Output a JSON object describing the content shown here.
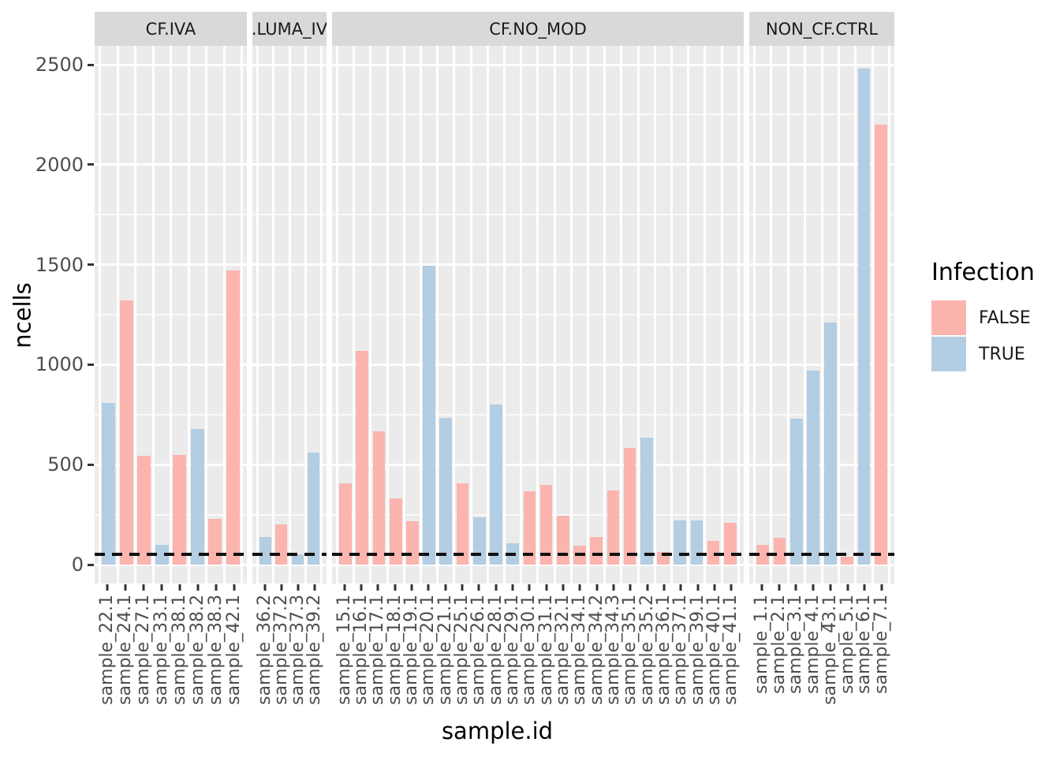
{
  "chart_data": {
    "type": "bar",
    "title": "",
    "xlabel": "sample.id",
    "ylabel": "ncells",
    "ylim": [
      0,
      2600
    ],
    "yticks": [
      "0",
      "500",
      "1000",
      "1500",
      "2000",
      "2500"
    ],
    "ytick_values": [
      0,
      500,
      1000,
      1500,
      2000,
      2500
    ],
    "minor_gridlines": [
      250,
      750,
      1250,
      1750,
      2250
    ],
    "grid": "on",
    "legend_position": "right",
    "hline": {
      "value": 50,
      "style": "dashed",
      "color": "#111111"
    },
    "legend": {
      "title": "Infection",
      "entries": [
        {
          "label": "FALSE",
          "color": "#FBB4AE"
        },
        {
          "label": "TRUE",
          "color": "#B3CDE3"
        }
      ]
    },
    "facets": [
      {
        "label": "CF.IVA",
        "bars": [
          {
            "id": "sample_22.1",
            "infection": "TRUE",
            "ncells": 810
          },
          {
            "id": "sample_24.1",
            "infection": "FALSE",
            "ncells": 1320
          },
          {
            "id": "sample_27.1",
            "infection": "FALSE",
            "ncells": 545
          },
          {
            "id": "sample_33.1",
            "infection": "TRUE",
            "ncells": 100
          },
          {
            "id": "sample_38.1",
            "infection": "FALSE",
            "ncells": 550
          },
          {
            "id": "sample_38.2",
            "infection": "TRUE",
            "ncells": 680
          },
          {
            "id": "sample_38.3",
            "infection": "FALSE",
            "ncells": 230
          },
          {
            "id": "sample_42.1",
            "infection": "FALSE",
            "ncells": 1470
          }
        ]
      },
      {
        "label": ".LUMA_IV",
        "bars": [
          {
            "id": "sample_36.2",
            "infection": "TRUE",
            "ncells": 140
          },
          {
            "id": "sample_37.2",
            "infection": "FALSE",
            "ncells": 200
          },
          {
            "id": "sample_37.3",
            "infection": "TRUE",
            "ncells": 50
          },
          {
            "id": "sample_39.2",
            "infection": "TRUE",
            "ncells": 560
          }
        ]
      },
      {
        "label": "CF.NO_MOD",
        "bars": [
          {
            "id": "sample_15.1",
            "infection": "FALSE",
            "ncells": 405
          },
          {
            "id": "sample_16.1",
            "infection": "FALSE",
            "ncells": 1070
          },
          {
            "id": "sample_17.1",
            "infection": "FALSE",
            "ncells": 665
          },
          {
            "id": "sample_18.1",
            "infection": "FALSE",
            "ncells": 330
          },
          {
            "id": "sample_19.1",
            "infection": "FALSE",
            "ncells": 215
          },
          {
            "id": "sample_20.1",
            "infection": "TRUE",
            "ncells": 1495
          },
          {
            "id": "sample_21.1",
            "infection": "TRUE",
            "ncells": 735
          },
          {
            "id": "sample_25.1",
            "infection": "FALSE",
            "ncells": 405
          },
          {
            "id": "sample_26.1",
            "infection": "TRUE",
            "ncells": 235
          },
          {
            "id": "sample_28.1",
            "infection": "TRUE",
            "ncells": 800
          },
          {
            "id": "sample_29.1",
            "infection": "TRUE",
            "ncells": 105
          },
          {
            "id": "sample_30.1",
            "infection": "FALSE",
            "ncells": 365
          },
          {
            "id": "sample_31.1",
            "infection": "FALSE",
            "ncells": 400
          },
          {
            "id": "sample_32.1",
            "infection": "FALSE",
            "ncells": 245
          },
          {
            "id": "sample_34.1",
            "infection": "FALSE",
            "ncells": 95
          },
          {
            "id": "sample_34.2",
            "infection": "FALSE",
            "ncells": 140
          },
          {
            "id": "sample_34.3",
            "infection": "FALSE",
            "ncells": 370
          },
          {
            "id": "sample_35.1",
            "infection": "FALSE",
            "ncells": 585
          },
          {
            "id": "sample_35.2",
            "infection": "TRUE",
            "ncells": 635
          },
          {
            "id": "sample_36.1",
            "infection": "FALSE",
            "ncells": 65
          },
          {
            "id": "sample_37.1",
            "infection": "TRUE",
            "ncells": 220
          },
          {
            "id": "sample_39.1",
            "infection": "TRUE",
            "ncells": 220
          },
          {
            "id": "sample_40.1",
            "infection": "FALSE",
            "ncells": 120
          },
          {
            "id": "sample_41.1",
            "infection": "FALSE",
            "ncells": 210
          }
        ]
      },
      {
        "label": "NON_CF.CTRL",
        "bars": [
          {
            "id": "sample_1.1",
            "infection": "FALSE",
            "ncells": 100
          },
          {
            "id": "sample_2.1",
            "infection": "FALSE",
            "ncells": 135
          },
          {
            "id": "sample_3.1",
            "infection": "TRUE",
            "ncells": 730
          },
          {
            "id": "sample_4.1",
            "infection": "TRUE",
            "ncells": 970
          },
          {
            "id": "sample_43.1",
            "infection": "TRUE",
            "ncells": 1210
          },
          {
            "id": "sample_5.1",
            "infection": "FALSE",
            "ncells": 40
          },
          {
            "id": "sample_6.1",
            "infection": "TRUE",
            "ncells": 2480
          },
          {
            "id": "sample_7.1",
            "infection": "FALSE",
            "ncells": 2200
          }
        ]
      }
    ],
    "colors": {
      "panel_background": "#EBEBEB",
      "strip_background": "#D9D9D9",
      "false_fill": "#FBB4AE",
      "true_fill": "#B3CDE3"
    }
  }
}
